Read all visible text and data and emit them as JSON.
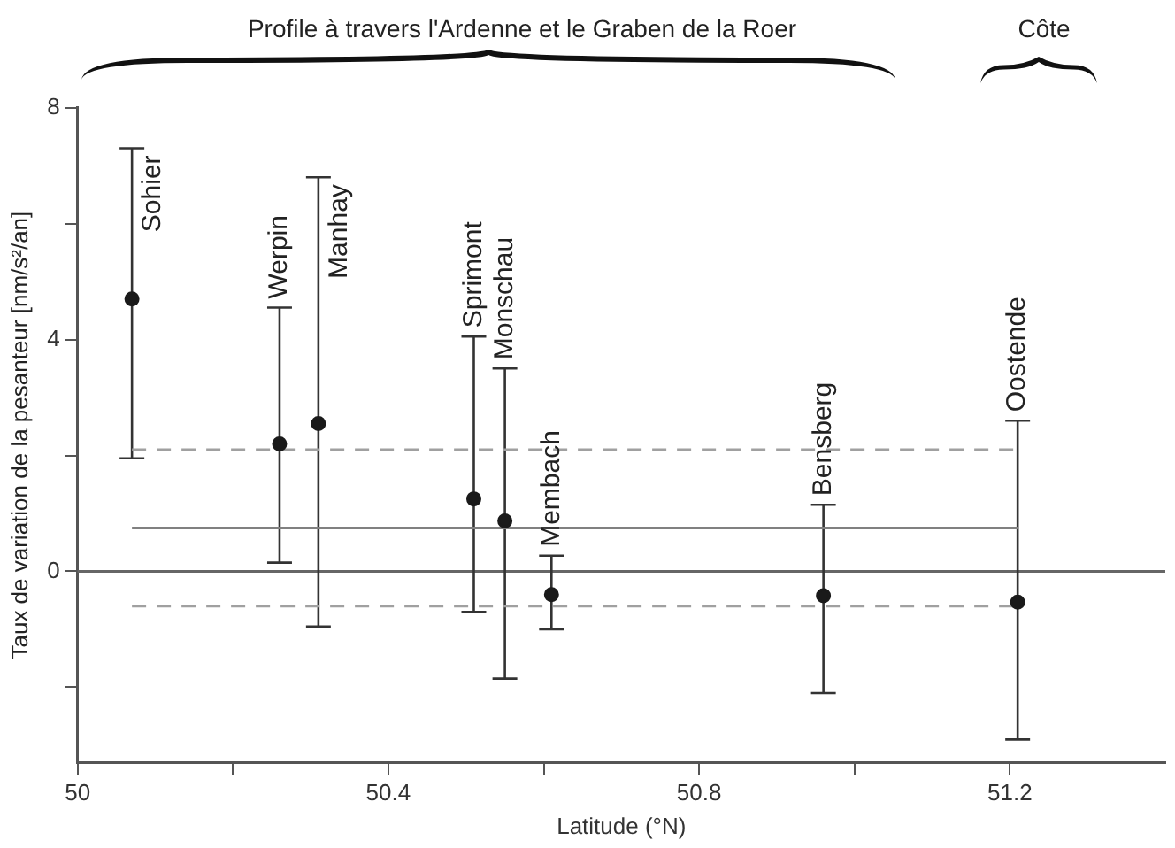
{
  "chart_data": {
    "type": "scatter",
    "xlabel": "Latitude (°N)",
    "ylabel": "Taux de variation de la pesanteur [nm/s²/an]",
    "xlim": [
      50,
      51.4
    ],
    "xticks": [
      50,
      {
        "value": 50.2,
        "label": null
      },
      50.4,
      {
        "value": 50.6,
        "label": null
      },
      50.8,
      {
        "value": 51.0,
        "label": null
      },
      51.2
    ],
    "ylim": [
      -3.3,
      8
    ],
    "yticks": [
      {
        "value": -2,
        "label": null
      },
      0,
      {
        "value": 2,
        "label": null
      },
      4,
      {
        "value": 6,
        "label": null
      },
      8
    ],
    "grid": false,
    "legend": false,
    "series": [
      {
        "type": "scatter",
        "color": "#1a1a1a",
        "marker": "circle",
        "x": [
          50.07,
          50.26,
          50.31,
          50.51,
          50.55,
          50.61,
          50.96,
          51.21
        ],
        "values": [
          4.7,
          2.2,
          2.55,
          1.25,
          0.87,
          -0.4,
          -0.42,
          -0.53
        ],
        "errors": [
          [
            1.95,
            7.3
          ],
          [
            0.15,
            4.55
          ],
          [
            -0.95,
            6.8
          ],
          [
            -0.7,
            4.05
          ],
          [
            -1.85,
            3.5
          ],
          [
            -1.0,
            0.27
          ],
          [
            -2.1,
            1.15
          ],
          [
            -2.9,
            2.6
          ]
        ]
      },
      {
        "type": "line",
        "color": "#808080",
        "marker": "none",
        "line_style": "solid",
        "x": [
          50.07,
          51.21
        ],
        "values": [
          0.75,
          0.75
        ]
      },
      {
        "type": "line",
        "color": "#a0a0a0",
        "marker": "none",
        "line_style": "dashed",
        "x": [
          50.07,
          51.21
        ],
        "values": [
          2.1,
          2.1
        ]
      },
      {
        "type": "line",
        "color": "#a0a0a0",
        "marker": "none",
        "line_style": "dashed",
        "x": [
          50.07,
          51.21
        ],
        "values": [
          -0.6,
          -0.6
        ]
      }
    ],
    "ref_lines": [
      {
        "axis": "y",
        "value": 0,
        "color": "#666666"
      }
    ],
    "annotations": [
      "Profile à travers l'Ardenne et le Graben de la Roer",
      "Côte",
      {
        "text": "Sohier",
        "x": 50.07,
        "y": 7.3
      },
      {
        "text": "Werpin",
        "x": 50.26,
        "y": 4.55
      },
      {
        "text": "Manhay",
        "x": 50.31,
        "y": 6.8
      },
      {
        "text": "Sprimont",
        "x": 50.51,
        "y": 4.05
      },
      {
        "text": "Monschau",
        "x": 50.55,
        "y": 3.5
      },
      {
        "text": "Membach",
        "x": 50.61,
        "y": 0.27
      },
      {
        "text": "Bensberg",
        "x": 50.96,
        "y": 1.15
      },
      {
        "text": "Oostende",
        "x": 51.21,
        "y": 2.6
      }
    ]
  }
}
